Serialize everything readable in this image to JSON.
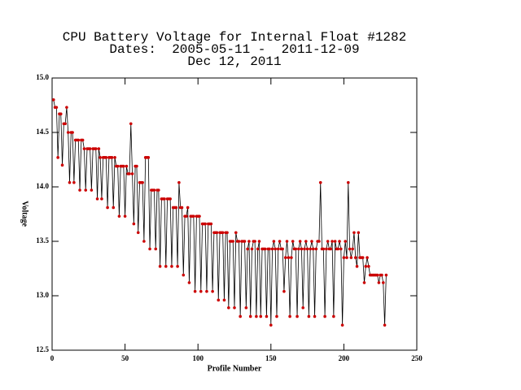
{
  "chart_data": {
    "type": "line",
    "title": "CPU Battery Voltage for Internal Float #1282",
    "subtitle": "Dates:  2005-05-11 -  2011-12-09",
    "date": "Dec 12, 2011",
    "xlabel": "Profile Number",
    "ylabel": "Voltage",
    "xlim": [
      0,
      250
    ],
    "xticks": [
      0,
      50,
      100,
      150,
      200,
      250
    ],
    "ylim": [
      12.5,
      15.0
    ],
    "yticks": [
      {
        "value": 12.5,
        "label": "12.5"
      },
      {
        "value": 13.0,
        "label": "13.0"
      },
      {
        "value": 13.5,
        "label": "13.5"
      },
      {
        "value": 14.0,
        "label": "14.0"
      },
      {
        "value": 14.5,
        "label": "14.5"
      },
      {
        "value": 15.0,
        "label": "15.0"
      }
    ],
    "x": [
      1,
      2,
      3,
      4,
      5,
      6,
      7,
      8,
      9,
      10,
      11,
      12,
      13,
      14,
      15,
      16,
      17,
      18,
      19,
      20,
      21,
      22,
      23,
      24,
      25,
      26,
      27,
      28,
      29,
      30,
      31,
      32,
      33,
      34,
      35,
      36,
      37,
      38,
      39,
      40,
      41,
      42,
      43,
      44,
      45,
      46,
      47,
      48,
      49,
      50,
      51,
      52,
      53,
      54,
      55,
      56,
      57,
      58,
      59,
      60,
      61,
      62,
      63,
      64,
      65,
      66,
      67,
      68,
      69,
      70,
      71,
      72,
      73,
      74,
      75,
      76,
      77,
      78,
      79,
      80,
      81,
      82,
      83,
      84,
      85,
      86,
      87,
      88,
      89,
      90,
      91,
      92,
      93,
      94,
      95,
      96,
      97,
      98,
      99,
      100,
      101,
      102,
      103,
      104,
      105,
      106,
      107,
      108,
      109,
      110,
      111,
      112,
      113,
      114,
      115,
      116,
      117,
      118,
      119,
      120,
      121,
      122,
      123,
      124,
      125,
      126,
      127,
      128,
      129,
      130,
      131,
      132,
      133,
      134,
      135,
      136,
      137,
      138,
      139,
      140,
      141,
      142,
      143,
      144,
      145,
      146,
      147,
      148,
      149,
      150,
      151,
      152,
      153,
      154,
      155,
      156,
      157,
      158,
      159,
      160,
      161,
      162,
      163,
      164,
      165,
      166,
      167,
      168,
      169,
      170,
      171,
      172,
      173,
      174,
      175,
      176,
      177,
      178,
      179,
      180,
      181,
      182,
      183,
      184,
      185,
      186,
      187,
      188,
      189,
      190,
      191,
      192,
      193,
      194,
      195,
      196,
      197,
      198,
      199,
      200,
      201,
      202,
      203,
      204,
      205,
      206,
      207,
      208,
      209,
      210,
      211,
      212,
      213,
      214,
      215,
      216,
      217,
      218,
      219,
      220,
      221,
      222,
      223,
      224,
      225,
      226,
      227,
      228,
      229
    ],
    "series": [
      {
        "color": "#000000",
        "marker_color": "#cc0000",
        "values": [
          14.8,
          14.73,
          14.73,
          14.27,
          14.67,
          14.67,
          14.2,
          14.58,
          14.58,
          14.73,
          14.5,
          14.04,
          14.5,
          14.5,
          14.04,
          14.43,
          14.43,
          14.43,
          13.97,
          14.43,
          14.43,
          14.35,
          13.97,
          14.35,
          14.35,
          14.35,
          13.97,
          14.35,
          14.35,
          14.35,
          13.89,
          14.35,
          14.27,
          13.89,
          14.27,
          14.27,
          14.27,
          13.81,
          14.27,
          14.27,
          14.27,
          13.81,
          14.27,
          14.19,
          14.19,
          13.73,
          14.19,
          14.19,
          14.19,
          13.73,
          14.19,
          14.12,
          14.12,
          14.58,
          14.12,
          13.66,
          14.19,
          14.19,
          13.58,
          14.04,
          14.04,
          14.04,
          13.5,
          14.27,
          14.27,
          14.27,
          13.43,
          13.97,
          13.97,
          13.97,
          13.43,
          13.97,
          13.97,
          13.27,
          13.89,
          13.89,
          13.89,
          13.27,
          13.89,
          13.89,
          13.89,
          13.27,
          13.81,
          13.81,
          13.81,
          13.27,
          14.04,
          13.81,
          13.81,
          13.19,
          13.73,
          13.73,
          13.81,
          13.12,
          13.73,
          13.73,
          13.73,
          13.04,
          13.73,
          13.73,
          13.73,
          13.04,
          13.66,
          13.66,
          13.66,
          13.04,
          13.66,
          13.66,
          13.66,
          13.04,
          13.58,
          13.58,
          13.58,
          12.96,
          13.58,
          13.58,
          13.58,
          12.96,
          13.58,
          13.58,
          12.89,
          13.5,
          13.5,
          13.5,
          12.89,
          13.58,
          13.5,
          13.5,
          12.81,
          13.5,
          13.5,
          13.5,
          12.89,
          13.43,
          13.5,
          12.81,
          13.43,
          13.5,
          13.5,
          12.81,
          13.43,
          13.5,
          12.81,
          13.43,
          13.43,
          13.43,
          12.81,
          13.43,
          13.43,
          12.73,
          13.43,
          13.5,
          13.43,
          12.81,
          13.43,
          13.5,
          13.43,
          13.43,
          13.04,
          13.35,
          13.5,
          13.35,
          12.81,
          13.35,
          13.5,
          13.43,
          13.43,
          12.81,
          13.43,
          13.5,
          13.43,
          12.89,
          13.43,
          13.5,
          13.43,
          12.81,
          13.43,
          13.5,
          13.43,
          12.81,
          13.43,
          13.5,
          13.5,
          14.04,
          13.43,
          13.43,
          12.81,
          13.43,
          13.5,
          13.43,
          13.43,
          13.5,
          12.81,
          13.5,
          13.43,
          13.43,
          13.5,
          13.43,
          12.73,
          13.35,
          13.5,
          13.35,
          14.04,
          13.43,
          13.35,
          13.43,
          13.58,
          13.35,
          13.27,
          13.58,
          13.35,
          13.35,
          13.35,
          13.12,
          13.27,
          13.35,
          13.27,
          13.19,
          13.19,
          13.19,
          13.19,
          13.19,
          13.19,
          13.12,
          13.19,
          13.19,
          13.12,
          12.73,
          13.19
        ]
      }
    ]
  }
}
